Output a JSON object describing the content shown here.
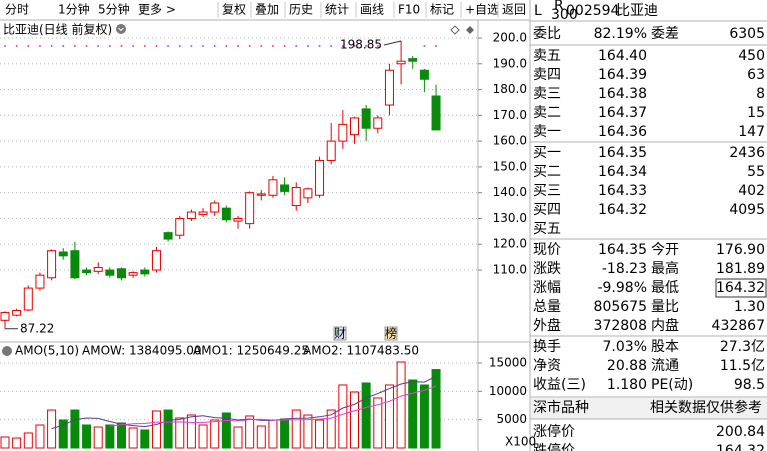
{
  "toolbar": {
    "left": [
      "分时",
      "1分钟",
      "5分钟",
      "更多 >"
    ],
    "right": [
      "复权",
      "叠加",
      "历史",
      "统计",
      "画线",
      "F10",
      "标记",
      "+自选",
      "返回"
    ]
  },
  "chart_data": [
    {
      "type": "candlestick",
      "title": "比亚迪(日线 前复权)",
      "up_color": "#e60000",
      "down_color": "#0a8a0a",
      "ylim": [
        84.8,
        203.1
      ],
      "yticks": [
        {
          "value": 110,
          "label": "110.0"
        },
        {
          "value": 120,
          "label": "120.0"
        },
        {
          "value": 130,
          "label": "130.0"
        },
        {
          "value": 140,
          "label": "140.0"
        },
        {
          "value": 150,
          "label": "150.0"
        },
        {
          "value": 160,
          "label": "160.0"
        },
        {
          "value": 170,
          "label": "170.0"
        },
        {
          "value": 180,
          "label": "180.0"
        },
        {
          "value": 190,
          "label": "190.0"
        },
        {
          "value": 200,
          "label": "200.0"
        }
      ],
      "grid": true,
      "open": [
        90.5,
        92.5,
        94.5,
        103,
        107,
        117,
        117.5,
        110,
        109.5,
        110,
        110.5,
        108,
        110,
        110,
        124.5,
        123.5,
        130,
        131.5,
        132.5,
        134,
        129,
        128,
        139,
        139,
        143,
        135,
        138,
        139,
        152.5,
        160,
        162.5,
        172.5,
        165,
        174,
        190,
        192,
        187.5,
        177.5
      ],
      "high": [
        94,
        95,
        104,
        109,
        118,
        118.5,
        121,
        111,
        113,
        111,
        111,
        109.5,
        111,
        119,
        125,
        131,
        133.5,
        134,
        137,
        135,
        131,
        140.5,
        141,
        146.5,
        146,
        144,
        142,
        154,
        167,
        172,
        169.5,
        174,
        170,
        190,
        198.85,
        193,
        188,
        181.89
      ],
      "low": [
        87.22,
        92,
        94,
        102,
        106,
        114,
        106.5,
        108,
        108.5,
        107,
        106,
        107,
        107.5,
        109,
        121,
        122,
        129,
        130.5,
        131,
        128.5,
        126,
        126,
        137,
        138,
        139,
        133,
        136,
        138,
        151,
        157,
        159,
        160,
        163,
        170,
        182,
        188,
        179,
        164.32
      ],
      "close": [
        93.5,
        94.3,
        103,
        108,
        117.5,
        115.5,
        107,
        109,
        111,
        108,
        107,
        109,
        108.5,
        117.5,
        122,
        130,
        132.5,
        132.5,
        136,
        129.5,
        130,
        140,
        139.5,
        145,
        140.5,
        142,
        141.5,
        152.5,
        160,
        166.5,
        169,
        165,
        169,
        187.5,
        191,
        191,
        184,
        164.35
      ],
      "max_marker": 198.85,
      "min_marker": 87.22,
      "event_markers": [
        "财",
        "榜"
      ]
    },
    {
      "type": "volume",
      "title": "AMO(5,10)",
      "unit_label": "X100",
      "ylim": [
        0,
        15880
      ],
      "yticks": [
        5000,
        10000,
        15000
      ],
      "series": [
        {
          "name": "AMOW: 1384095.00",
          "color": "#222222",
          "values": [
            1940,
            1765,
            2650,
            4060,
            6700,
            4940,
            6700,
            4060,
            3700,
            4060,
            4410,
            3530,
            3180,
            6530,
            6700,
            5300,
            5820,
            4060,
            4940,
            6180,
            3700,
            5650,
            3880,
            4940,
            5120,
            6700,
            5820,
            4940,
            6700,
            11120,
            9880,
            11470,
            8830,
            11120,
            15180,
            12000,
            11120,
            13840
          ]
        },
        {
          "name": "AMO1: 1250649.25",
          "color": "#5b3a8c",
          "values": [
            null,
            null,
            null,
            null,
            3423,
            4023,
            5010,
            5292,
            5220,
            4680,
            4186,
            3952,
            3776,
            4142,
            4870,
            5048,
            5506,
            5692,
            5364,
            5260,
            4940,
            5106,
            4882,
            4870,
            5114,
            5258,
            5282,
            5504,
            5856,
            7056,
            7692,
            8822,
            9600,
            10484,
            11296,
            11720,
            11630,
            12652
          ]
        },
        {
          "name": "AMO2: 1107483.50",
          "color": "#e03ce0",
          "values": [
            null,
            null,
            null,
            null,
            null,
            null,
            null,
            null,
            null,
            3852,
            4099,
            4275,
            4328,
            4575,
            4575,
            4611,
            4523,
            4523,
            4647,
            4859,
            4788,
            4997,
            5067,
            4908,
            4950,
            4990,
            5002,
            5090,
            5266,
            5961,
            6575,
            7140,
            7635,
            8252,
            9158,
            9675,
            10190,
            10904
          ]
        }
      ]
    }
  ],
  "quote": {
    "badge": "L",
    "badge_sup": "R",
    "badge_sub": "300",
    "code": "002594",
    "name": "比亚迪",
    "ratio": [
      "委比",
      "82.19%",
      "委差",
      "6305"
    ],
    "asks": [
      [
        "卖五",
        "164.40",
        "450"
      ],
      [
        "卖四",
        "164.39",
        "63"
      ],
      [
        "卖三",
        "164.38",
        "8"
      ],
      [
        "卖二",
        "164.37",
        "15"
      ],
      [
        "卖一",
        "164.36",
        "147"
      ]
    ],
    "bids": [
      [
        "买一",
        "164.35",
        "2436"
      ],
      [
        "买二",
        "164.34",
        "55"
      ],
      [
        "买三",
        "164.33",
        "402"
      ],
      [
        "买四",
        "164.32",
        "4095"
      ],
      [
        "买五"
      ]
    ],
    "stats": [
      [
        "现价",
        "164.35",
        "今开",
        "176.90"
      ],
      [
        "涨跌",
        "-18.23",
        "最高",
        "181.89"
      ],
      [
        "涨幅",
        "-9.98%",
        "最低",
        "164.32"
      ],
      [
        "总量",
        "805675",
        "量比",
        "1.30"
      ],
      [
        "外盘",
        "372808",
        "内盘",
        "432867"
      ],
      [
        "换手",
        "7.03%",
        "股本",
        "27.3亿"
      ],
      [
        "净资",
        "20.88",
        "流通",
        "11.5亿"
      ],
      [
        "收益(三)",
        "1.180",
        "PE(动)",
        "98.5"
      ]
    ],
    "footer": [
      "深市品种",
      "相关数据仅供参考"
    ],
    "limits": [
      [
        "涨停价",
        "200.84"
      ],
      [
        "跌停价",
        "164.32"
      ]
    ]
  }
}
